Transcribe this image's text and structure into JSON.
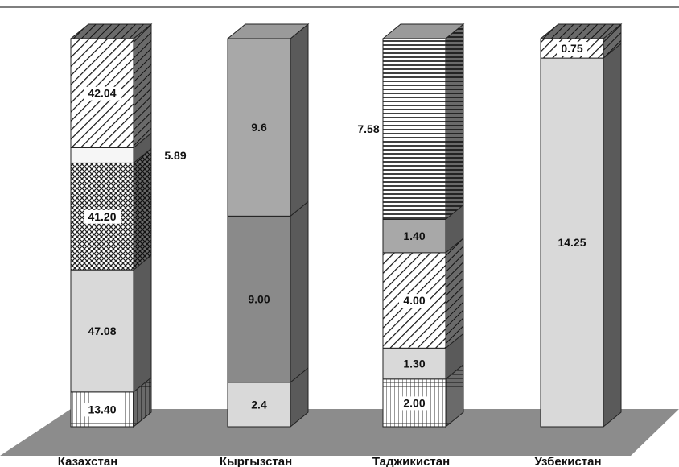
{
  "chart_data": {
    "type": "bar",
    "stacked": true,
    "three_d": true,
    "categories": [
      "Казахстан",
      "Кыргызстан",
      "Таджикистан",
      "Узбекистан"
    ],
    "bars": [
      {
        "category": "Казахстан",
        "segments": [
          {
            "value": 13.4,
            "label": "13.40",
            "pattern": "grid",
            "label_bg": true
          },
          {
            "value": 47.08,
            "label": "47.08",
            "pattern": "light",
            "label_bg": false
          },
          {
            "value": 41.2,
            "label": "41.20",
            "pattern": "crosshatch",
            "label_bg": true
          },
          {
            "value": 5.89,
            "label": "5.89",
            "pattern": "white",
            "label_bg": false,
            "label_outside": true
          },
          {
            "value": 42.04,
            "label": "42.04",
            "pattern": "diag",
            "label_bg": true
          }
        ]
      },
      {
        "category": "Кыргызстан",
        "segments": [
          {
            "value": 2.4,
            "label": "2.4",
            "pattern": "light",
            "label_bg": false
          },
          {
            "value": 9.0,
            "label": "9.00",
            "pattern": "mid",
            "label_bg": false
          },
          {
            "value": 9.6,
            "label": "9.6",
            "pattern": "midlight",
            "label_bg": false
          }
        ]
      },
      {
        "category": "Таджикистан",
        "segments": [
          {
            "value": 2.0,
            "label": "2.00",
            "pattern": "grid",
            "label_bg": true
          },
          {
            "value": 1.3,
            "label": "1.30",
            "pattern": "light",
            "label_bg": false
          },
          {
            "value": 4.0,
            "label": "4.00",
            "pattern": "diag",
            "label_bg": true
          },
          {
            "value": 1.4,
            "label": "1.40",
            "pattern": "midlight",
            "label_bg": false
          },
          {
            "value": 7.58,
            "label": "7.58",
            "pattern": "hlines",
            "label_bg": false,
            "label_outside": true
          }
        ]
      },
      {
        "category": "Узбекистан",
        "segments": [
          {
            "value": 14.25,
            "label": "14.25",
            "pattern": "light",
            "label_bg": false
          },
          {
            "value": 0.75,
            "label": "0.75",
            "pattern": "diag",
            "label_bg": true
          }
        ]
      }
    ],
    "colors": {
      "floor": "#8c8c8c",
      "side": "#5a5a5a",
      "top": "#9a9a9a",
      "light": "#d9d9d9",
      "mid": "#8a8a8a",
      "midlight": "#a8a8a8"
    },
    "legend": false,
    "grid": false
  }
}
